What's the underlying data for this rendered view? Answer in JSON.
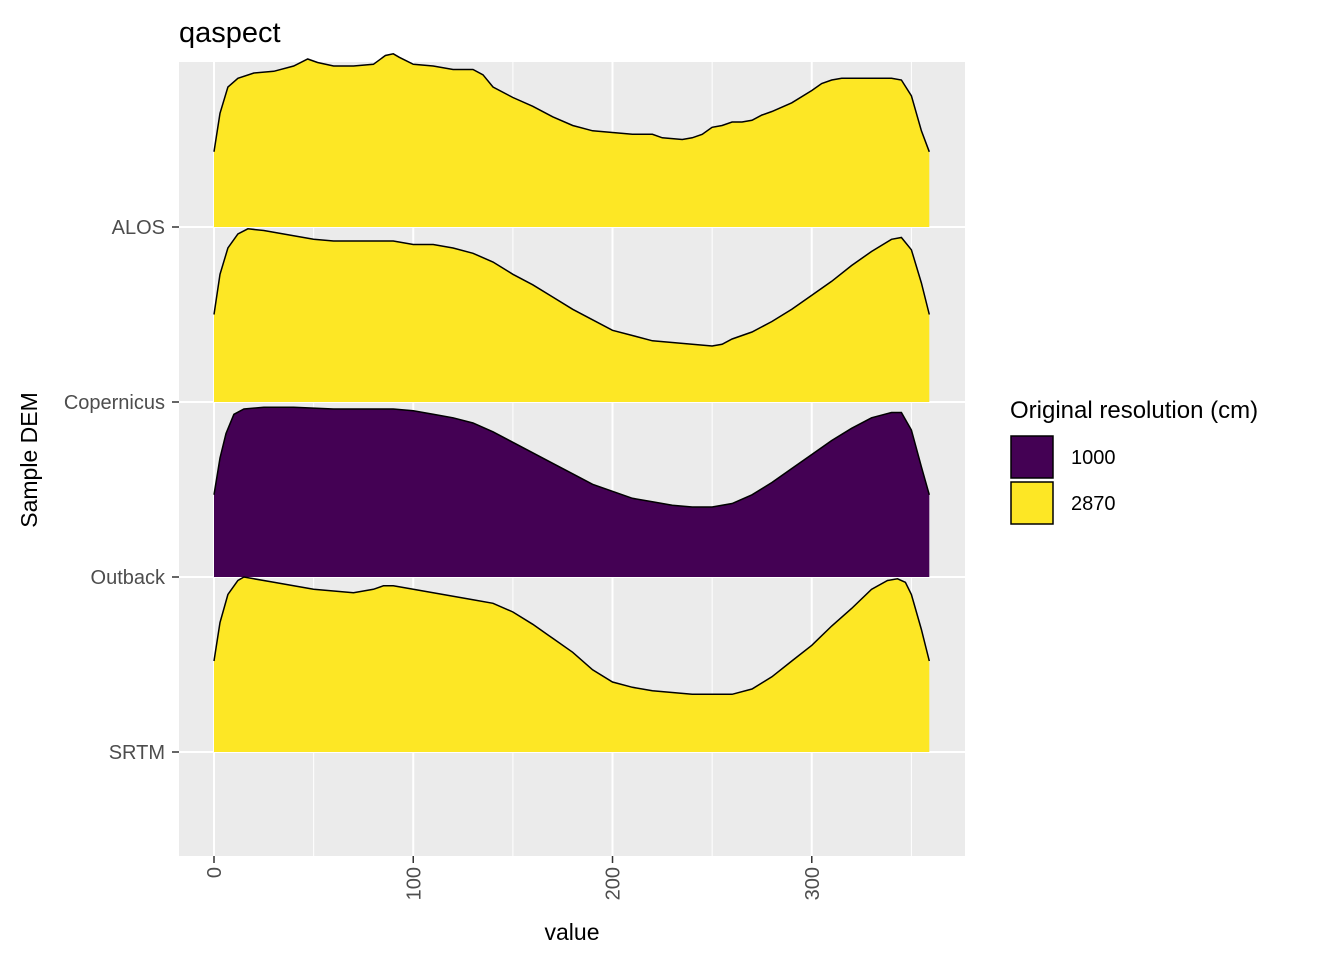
{
  "chart_data": {
    "type": "ridgeline-density",
    "title": "qaspect",
    "xlabel": "value",
    "ylabel": "Sample DEM",
    "xlim": [
      -17,
      377
    ],
    "xticks": [
      0,
      100,
      200,
      300
    ],
    "xtick_labels": [
      "0",
      "100",
      "200",
      "300"
    ],
    "categories": [
      "ALOS",
      "Copernicus",
      "Outback",
      "SRTM"
    ],
    "legend": {
      "title": "Original resolution (cm)",
      "position": "right",
      "entries": [
        {
          "label": "1000",
          "color": "#440154"
        },
        {
          "label": "2870",
          "color": "#FDE725"
        }
      ]
    },
    "grid": true,
    "panel_background": "#EBEBEB",
    "series": [
      {
        "category": "ALOS",
        "resolution": "2870",
        "color": "#FDE725",
        "x": [
          0,
          3,
          7,
          12,
          20,
          30,
          40,
          47,
          52,
          60,
          70,
          80,
          86,
          90,
          93,
          100,
          110,
          120,
          130,
          135,
          140,
          150,
          160,
          170,
          180,
          190,
          200,
          210,
          220,
          225,
          235,
          240,
          245,
          250,
          255,
          260,
          265,
          270,
          275,
          280,
          290,
          300,
          305,
          310,
          315,
          320,
          330,
          340,
          345,
          350,
          355,
          359
        ],
        "y": [
          0.43,
          0.65,
          0.8,
          0.85,
          0.88,
          0.89,
          0.92,
          0.96,
          0.94,
          0.92,
          0.92,
          0.93,
          0.98,
          0.99,
          0.97,
          0.93,
          0.92,
          0.9,
          0.9,
          0.87,
          0.8,
          0.74,
          0.69,
          0.63,
          0.58,
          0.55,
          0.54,
          0.53,
          0.53,
          0.51,
          0.5,
          0.51,
          0.53,
          0.57,
          0.58,
          0.6,
          0.6,
          0.61,
          0.64,
          0.66,
          0.71,
          0.78,
          0.82,
          0.84,
          0.85,
          0.85,
          0.85,
          0.85,
          0.84,
          0.75,
          0.55,
          0.43
        ]
      },
      {
        "category": "Copernicus",
        "resolution": "2870",
        "color": "#FDE725",
        "x": [
          0,
          3,
          7,
          12,
          17,
          25,
          35,
          50,
          60,
          70,
          80,
          90,
          100,
          110,
          120,
          130,
          140,
          150,
          160,
          170,
          180,
          190,
          200,
          210,
          220,
          230,
          240,
          250,
          255,
          260,
          270,
          280,
          290,
          300,
          310,
          320,
          330,
          340,
          345,
          350,
          355,
          359
        ],
        "y": [
          0.5,
          0.73,
          0.88,
          0.96,
          0.99,
          0.98,
          0.96,
          0.93,
          0.92,
          0.92,
          0.92,
          0.92,
          0.9,
          0.9,
          0.88,
          0.85,
          0.8,
          0.73,
          0.67,
          0.6,
          0.53,
          0.47,
          0.41,
          0.38,
          0.35,
          0.34,
          0.33,
          0.32,
          0.33,
          0.36,
          0.4,
          0.46,
          0.53,
          0.61,
          0.69,
          0.78,
          0.86,
          0.93,
          0.94,
          0.87,
          0.68,
          0.5
        ]
      },
      {
        "category": "Outback",
        "resolution": "1000",
        "color": "#440154",
        "x": [
          0,
          3,
          6,
          10,
          15,
          25,
          40,
          60,
          80,
          90,
          100,
          110,
          120,
          130,
          140,
          150,
          160,
          170,
          180,
          190,
          200,
          210,
          220,
          230,
          240,
          250,
          260,
          270,
          280,
          290,
          300,
          310,
          320,
          330,
          340,
          345,
          350,
          355,
          359
        ],
        "y": [
          0.47,
          0.68,
          0.82,
          0.93,
          0.96,
          0.97,
          0.97,
          0.96,
          0.96,
          0.96,
          0.95,
          0.93,
          0.91,
          0.88,
          0.83,
          0.77,
          0.71,
          0.65,
          0.59,
          0.53,
          0.49,
          0.45,
          0.43,
          0.41,
          0.4,
          0.4,
          0.42,
          0.47,
          0.54,
          0.62,
          0.7,
          0.78,
          0.85,
          0.91,
          0.94,
          0.94,
          0.84,
          0.63,
          0.47
        ]
      },
      {
        "category": "SRTM",
        "resolution": "2870",
        "color": "#FDE725",
        "x": [
          0,
          3,
          7,
          12,
          15,
          20,
          30,
          40,
          50,
          60,
          70,
          80,
          85,
          90,
          95,
          100,
          110,
          120,
          130,
          140,
          150,
          160,
          170,
          180,
          190,
          200,
          210,
          220,
          230,
          240,
          250,
          260,
          270,
          280,
          290,
          300,
          310,
          320,
          330,
          338,
          343,
          347,
          350,
          355,
          359
        ],
        "y": [
          0.52,
          0.74,
          0.9,
          0.98,
          1.0,
          0.99,
          0.97,
          0.95,
          0.93,
          0.92,
          0.91,
          0.93,
          0.95,
          0.95,
          0.94,
          0.93,
          0.91,
          0.89,
          0.87,
          0.85,
          0.8,
          0.73,
          0.65,
          0.57,
          0.47,
          0.4,
          0.37,
          0.35,
          0.34,
          0.33,
          0.33,
          0.33,
          0.36,
          0.43,
          0.52,
          0.61,
          0.72,
          0.82,
          0.93,
          0.98,
          0.99,
          0.97,
          0.9,
          0.7,
          0.52
        ]
      }
    ]
  }
}
